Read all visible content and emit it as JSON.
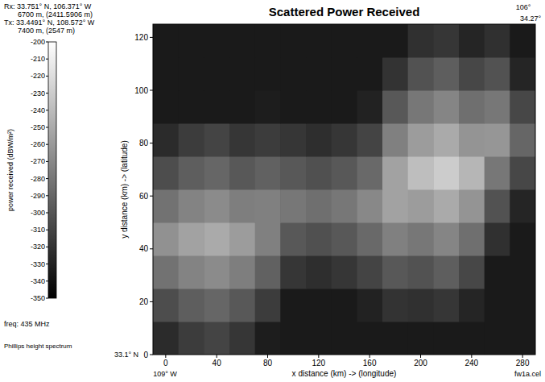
{
  "chart_data": {
    "type": "heatmap",
    "title": "Scattered Power Received",
    "x_label": "x distance (km) -> (longitude)",
    "y_label": "y distance (km) -> (latitude)",
    "xlim": [
      -10,
      290
    ],
    "ylim": [
      0,
      125
    ],
    "xticks": [
      0,
      40,
      80,
      120,
      160,
      200,
      240,
      280
    ],
    "yticks": [
      0,
      20,
      40,
      60,
      80,
      100,
      120
    ],
    "grid": false,
    "x_edges": [
      -10,
      10,
      30,
      50,
      70,
      90,
      110,
      130,
      150,
      170,
      190,
      210,
      230,
      250,
      270,
      290
    ],
    "y_edges": [
      0,
      12.5,
      25,
      37.5,
      50,
      62.5,
      75,
      87.5,
      100,
      112.5,
      125
    ],
    "cells": [
      [
        -325,
        -315,
        -310,
        -318,
        -333,
        -335,
        -335,
        -335,
        -335,
        -335,
        -335,
        -335,
        -335,
        -335,
        -335
      ],
      [
        -305,
        -295,
        -290,
        -298,
        -315,
        -335,
        -335,
        -335,
        -330,
        -320,
        -322,
        -318,
        -328,
        -335,
        -335
      ],
      [
        -283,
        -273,
        -268,
        -276,
        -293,
        -318,
        -323,
        -318,
        -310,
        -298,
        -302,
        -295,
        -308,
        -335,
        -335
      ],
      [
        -265,
        -255,
        -250,
        -258,
        -275,
        -298,
        -303,
        -298,
        -288,
        -275,
        -280,
        -272,
        -285,
        -322,
        -335
      ],
      [
        -283,
        -273,
        -268,
        -276,
        -275,
        -280,
        -285,
        -280,
        -270,
        -255,
        -258,
        -250,
        -263,
        -302,
        -328
      ],
      [
        -305,
        -295,
        -290,
        -298,
        -293,
        -298,
        -303,
        -298,
        -288,
        -255,
        -238,
        -230,
        -243,
        -280,
        -308
      ],
      [
        -325,
        -315,
        -310,
        -318,
        -315,
        -318,
        -323,
        -318,
        -310,
        -275,
        -258,
        -250,
        -263,
        -262,
        -290
      ],
      [
        -335,
        -335,
        -335,
        -335,
        -333,
        -335,
        -335,
        -335,
        -330,
        -298,
        -280,
        -272,
        -285,
        -280,
        -308
      ],
      [
        -335,
        -335,
        -335,
        -335,
        -335,
        -335,
        -335,
        -335,
        -335,
        -320,
        -302,
        -295,
        -308,
        -302,
        -328
      ],
      [
        -335,
        -335,
        -335,
        -335,
        -335,
        -335,
        -335,
        -335,
        -335,
        -335,
        -322,
        -318,
        -328,
        -322,
        -335
      ]
    ],
    "colorbar": {
      "label": "power received (dBW/m²)",
      "range": [
        -350,
        -200
      ],
      "ticks": [
        -200,
        -210,
        -220,
        -230,
        -240,
        -250,
        -260,
        -270,
        -280,
        -290,
        -300,
        -310,
        -320,
        -330,
        -340,
        -350
      ]
    },
    "annotations": [
      "Rx: 33.751° N, 106.371° W",
      "6700 m, (2411.5906 m)",
      "Tx: 33.4491° N, 108.572° W",
      "7400 m, (2547 m)",
      "freq: 435 MHz",
      "Phillips height spectrum",
      "33.1° N",
      "109° W",
      "106°",
      "34.27°",
      "fw1a.cel"
    ]
  }
}
